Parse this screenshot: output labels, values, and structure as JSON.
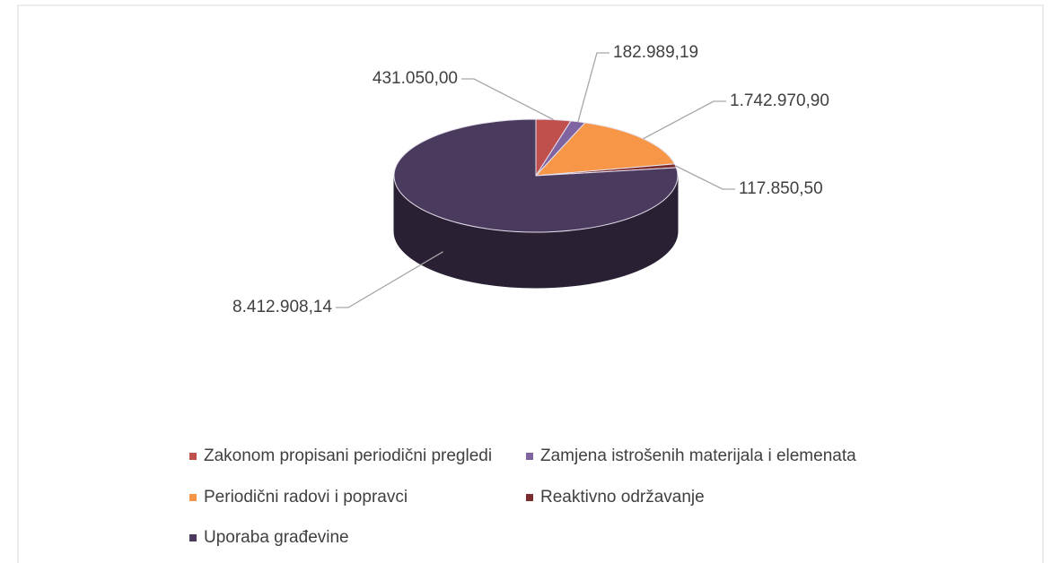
{
  "chart_data": {
    "type": "pie",
    "categories": [
      "Zakonom propisani periodični pregledi",
      "Zamjena istrošenih materijala i elemenata",
      "Periodični radovi i popravci",
      "Reaktivno održavanje",
      "Uporaba građevine"
    ],
    "values": [
      431050.0,
      182989.19,
      1742970.9,
      117850.5,
      8412908.14
    ],
    "value_labels": [
      "431.050,00",
      "182.989,19",
      "1.742.970,90",
      "117.850,50",
      "8.412.908,14"
    ],
    "colors": [
      "#c0504d",
      "#8064a2",
      "#f79646",
      "#7b2c2c",
      "#4a3a5e"
    ],
    "legend": "bottom"
  }
}
